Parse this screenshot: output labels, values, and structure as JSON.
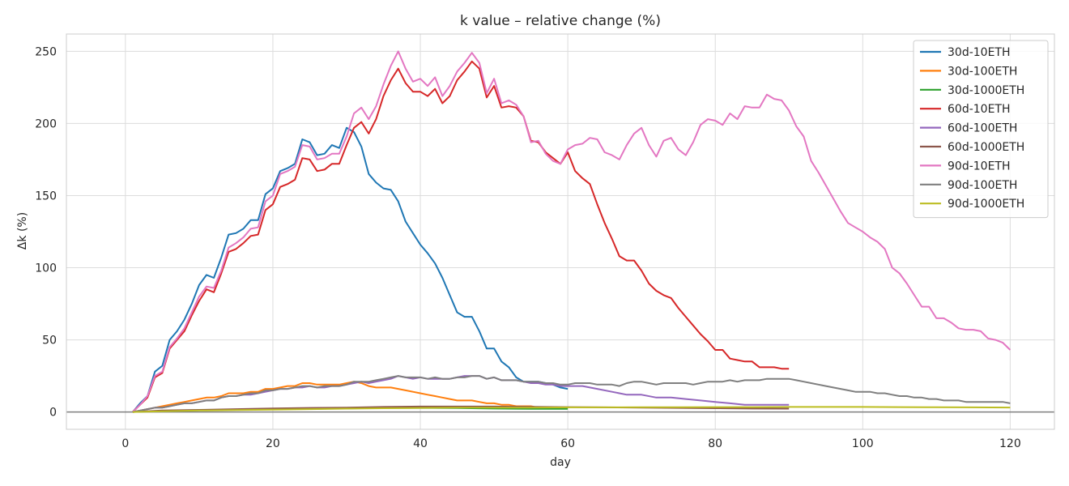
{
  "chart_data": {
    "type": "line",
    "title": "k value – relative change (%)",
    "xlabel": "day",
    "ylabel": "Δk (%)",
    "xlim": [
      -8,
      126
    ],
    "ylim": [
      -12,
      262
    ],
    "xticks": [
      0,
      20,
      40,
      60,
      80,
      100,
      120
    ],
    "yticks": [
      0,
      50,
      100,
      150,
      200,
      250
    ],
    "grid": true,
    "zero_line": true,
    "legend_position": "top-right",
    "series": [
      {
        "name": "30d-10ETH",
        "color": "#1f77b4",
        "x": [
          1,
          2,
          3,
          4,
          5,
          6,
          7,
          8,
          9,
          10,
          11,
          12,
          13,
          14,
          15,
          16,
          17,
          18,
          19,
          20,
          21,
          22,
          23,
          24,
          25,
          26,
          27,
          28,
          29,
          30,
          31,
          32,
          33,
          34,
          35,
          36,
          37,
          38,
          39,
          40,
          41,
          42,
          43,
          44,
          45,
          46,
          47,
          48,
          49,
          50,
          51,
          52,
          53,
          54,
          55,
          56,
          57,
          58,
          59,
          60
        ],
        "y": [
          0,
          6,
          11,
          28,
          32,
          50,
          56,
          64,
          75,
          88,
          95,
          93,
          107,
          123,
          124,
          127,
          133,
          133,
          151,
          155,
          167,
          169,
          172,
          189,
          187,
          178,
          179,
          185,
          183,
          197,
          194,
          184,
          165,
          159,
          155,
          154,
          146,
          132,
          124,
          116,
          110,
          103,
          93,
          81,
          69,
          66,
          66,
          56,
          44,
          44,
          35,
          31,
          24,
          21,
          21,
          21,
          20,
          19,
          17,
          16
        ]
      },
      {
        "name": "30d-100ETH",
        "color": "#ff7f0e",
        "x": [
          1,
          2,
          3,
          4,
          5,
          6,
          7,
          8,
          9,
          10,
          11,
          12,
          13,
          14,
          15,
          16,
          17,
          18,
          19,
          20,
          21,
          22,
          23,
          24,
          25,
          26,
          27,
          28,
          29,
          30,
          31,
          32,
          33,
          34,
          35,
          36,
          37,
          38,
          39,
          40,
          41,
          42,
          43,
          44,
          45,
          46,
          47,
          48,
          49,
          50,
          51,
          52,
          53,
          54,
          55,
          56,
          57,
          58,
          59,
          60
        ],
        "y": [
          0,
          1,
          2,
          3,
          4,
          5,
          6,
          7,
          8,
          9,
          10,
          10,
          11,
          13,
          13,
          13,
          14,
          14,
          16,
          16,
          17,
          18,
          18,
          20,
          20,
          19,
          19,
          19,
          19,
          20,
          21,
          20,
          18,
          17,
          17,
          17,
          16,
          15,
          14,
          13,
          12,
          11,
          10,
          9,
          8,
          8,
          8,
          7,
          6,
          6,
          5,
          5,
          4,
          4,
          4,
          3,
          3,
          3,
          3,
          3
        ]
      },
      {
        "name": "30d-1000ETH",
        "color": "#2ca02c",
        "x": [
          1,
          5,
          10,
          15,
          20,
          25,
          30,
          35,
          40,
          45,
          50,
          55,
          60
        ],
        "y": [
          0,
          0.8,
          1.2,
          1.6,
          2.0,
          2.2,
          2.5,
          2.8,
          2.8,
          2.7,
          2.4,
          2.2,
          2.2
        ]
      },
      {
        "name": "60d-10ETH",
        "color": "#d62728",
        "x": [
          1,
          2,
          3,
          4,
          5,
          6,
          7,
          8,
          9,
          10,
          11,
          12,
          13,
          14,
          15,
          16,
          17,
          18,
          19,
          20,
          21,
          22,
          23,
          24,
          25,
          26,
          27,
          28,
          29,
          30,
          31,
          32,
          33,
          34,
          35,
          36,
          37,
          38,
          39,
          40,
          41,
          42,
          43,
          44,
          45,
          46,
          47,
          48,
          49,
          50,
          51,
          52,
          53,
          54,
          55,
          56,
          57,
          58,
          59,
          60,
          61,
          62,
          63,
          64,
          65,
          66,
          67,
          68,
          69,
          70,
          71,
          72,
          73,
          74,
          75,
          76,
          77,
          78,
          79,
          80,
          81,
          82,
          83,
          84,
          85,
          86,
          87,
          88,
          89,
          90
        ],
        "y": [
          0,
          5,
          10,
          24,
          27,
          44,
          50,
          56,
          67,
          77,
          85,
          83,
          96,
          111,
          113,
          117,
          122,
          123,
          140,
          144,
          156,
          158,
          161,
          176,
          175,
          167,
          168,
          172,
          172,
          185,
          197,
          201,
          193,
          203,
          219,
          230,
          238,
          228,
          222,
          222,
          219,
          224,
          214,
          219,
          230,
          236,
          243,
          238,
          218,
          226,
          211,
          212,
          211,
          205,
          188,
          187,
          180,
          176,
          172,
          180,
          167,
          162,
          158,
          144,
          131,
          120,
          108,
          105,
          105,
          98,
          89,
          84,
          81,
          79,
          72,
          66,
          60,
          54,
          49,
          43,
          43,
          37,
          36,
          35,
          35,
          31,
          31,
          31,
          30,
          30
        ]
      },
      {
        "name": "60d-100ETH",
        "color": "#9467bd",
        "x": [
          1,
          2,
          3,
          4,
          5,
          6,
          7,
          8,
          9,
          10,
          11,
          12,
          13,
          14,
          15,
          16,
          17,
          18,
          19,
          20,
          21,
          22,
          23,
          24,
          25,
          26,
          27,
          28,
          29,
          30,
          31,
          32,
          33,
          34,
          35,
          36,
          37,
          38,
          39,
          40,
          41,
          42,
          43,
          44,
          45,
          46,
          47,
          48,
          49,
          50,
          51,
          52,
          53,
          54,
          55,
          56,
          57,
          58,
          59,
          60,
          62,
          64,
          66,
          68,
          70,
          72,
          74,
          76,
          78,
          80,
          82,
          84,
          86,
          88,
          90
        ],
        "y": [
          0,
          1,
          2,
          3,
          3,
          4,
          5,
          6,
          6,
          7,
          8,
          8,
          10,
          11,
          11,
          12,
          12,
          13,
          14,
          15,
          16,
          16,
          17,
          17,
          18,
          17,
          17,
          18,
          18,
          19,
          20,
          21,
          20,
          21,
          22,
          23,
          25,
          24,
          23,
          24,
          23,
          23,
          23,
          23,
          24,
          25,
          25,
          25,
          23,
          24,
          22,
          22,
          22,
          21,
          20,
          20,
          19,
          19,
          18,
          18,
          18,
          16,
          14,
          12,
          12,
          10,
          10,
          9,
          8,
          7,
          6,
          5,
          5,
          5,
          5
        ]
      },
      {
        "name": "60d-1000ETH",
        "color": "#8c564b",
        "x": [
          1,
          5,
          10,
          15,
          20,
          25,
          30,
          35,
          40,
          45,
          50,
          55,
          60,
          65,
          70,
          75,
          80,
          85,
          90
        ],
        "y": [
          0,
          1,
          1.5,
          2,
          2.5,
          2.8,
          3,
          3.5,
          3.8,
          3.8,
          3.8,
          3.6,
          3.4,
          3.2,
          3.0,
          2.8,
          2.6,
          2.4,
          2.3
        ]
      },
      {
        "name": "90d-10ETH",
        "color": "#e377c2",
        "x": [
          1,
          2,
          3,
          4,
          5,
          6,
          7,
          8,
          9,
          10,
          11,
          12,
          13,
          14,
          15,
          16,
          17,
          18,
          19,
          20,
          21,
          22,
          23,
          24,
          25,
          26,
          27,
          28,
          29,
          30,
          31,
          32,
          33,
          34,
          35,
          36,
          37,
          38,
          39,
          40,
          41,
          42,
          43,
          44,
          45,
          46,
          47,
          48,
          49,
          50,
          51,
          52,
          53,
          54,
          55,
          56,
          57,
          58,
          59,
          60,
          61,
          62,
          63,
          64,
          65,
          66,
          67,
          68,
          69,
          70,
          71,
          72,
          73,
          74,
          75,
          76,
          77,
          78,
          79,
          80,
          81,
          82,
          83,
          84,
          85,
          86,
          87,
          88,
          89,
          90,
          91,
          92,
          93,
          94,
          95,
          96,
          97,
          98,
          99,
          100,
          101,
          102,
          103,
          104,
          105,
          106,
          107,
          108,
          109,
          110,
          111,
          112,
          113,
          114,
          115,
          116,
          117,
          118,
          119,
          120
        ],
        "y": [
          0,
          5,
          11,
          25,
          28,
          45,
          51,
          58,
          69,
          80,
          87,
          86,
          98,
          114,
          117,
          121,
          127,
          128,
          146,
          150,
          165,
          167,
          170,
          185,
          184,
          175,
          176,
          179,
          179,
          191,
          207,
          211,
          203,
          212,
          227,
          240,
          250,
          238,
          229,
          231,
          226,
          232,
          219,
          226,
          236,
          242,
          249,
          242,
          221,
          231,
          214,
          216,
          213,
          205,
          187,
          188,
          179,
          174,
          172,
          182,
          185,
          186,
          190,
          189,
          180,
          178,
          175,
          185,
          193,
          197,
          185,
          177,
          188,
          190,
          182,
          178,
          187,
          199,
          203,
          202,
          199,
          207,
          203,
          212,
          211,
          211,
          220,
          217,
          216,
          209,
          198,
          191,
          174,
          166,
          157,
          148,
          139,
          131,
          128,
          125,
          121,
          118,
          113,
          100,
          96,
          89,
          81,
          73,
          73,
          65,
          65,
          62,
          58,
          57,
          57,
          56,
          51,
          50,
          48,
          43
        ]
      },
      {
        "name": "90d-100ETH",
        "color": "#7f7f7f",
        "x": [
          1,
          2,
          3,
          4,
          5,
          6,
          7,
          8,
          9,
          10,
          11,
          12,
          13,
          14,
          15,
          16,
          17,
          18,
          19,
          20,
          21,
          22,
          23,
          24,
          25,
          26,
          27,
          28,
          29,
          30,
          31,
          32,
          33,
          34,
          35,
          36,
          37,
          38,
          39,
          40,
          41,
          42,
          43,
          44,
          45,
          46,
          47,
          48,
          49,
          50,
          51,
          52,
          53,
          54,
          55,
          56,
          57,
          58,
          59,
          60,
          61,
          62,
          63,
          64,
          65,
          66,
          67,
          68,
          69,
          70,
          71,
          72,
          73,
          74,
          75,
          76,
          77,
          78,
          79,
          80,
          81,
          82,
          83,
          84,
          85,
          86,
          87,
          88,
          89,
          90,
          91,
          92,
          93,
          94,
          95,
          96,
          97,
          98,
          99,
          100,
          101,
          102,
          103,
          104,
          105,
          106,
          107,
          108,
          109,
          110,
          111,
          112,
          113,
          114,
          115,
          116,
          117,
          118,
          119,
          120
        ],
        "y": [
          0,
          1,
          2,
          3,
          3,
          4,
          5,
          6,
          6,
          7,
          8,
          8,
          10,
          11,
          11,
          12,
          13,
          13,
          15,
          15,
          16,
          16,
          17,
          18,
          18,
          17,
          18,
          18,
          18,
          19,
          21,
          21,
          21,
          22,
          23,
          24,
          25,
          24,
          24,
          24,
          23,
          24,
          23,
          23,
          24,
          24,
          25,
          25,
          23,
          24,
          22,
          22,
          22,
          21,
          21,
          21,
          20,
          20,
          19,
          19,
          20,
          20,
          20,
          19,
          19,
          19,
          18,
          20,
          21,
          21,
          20,
          19,
          20,
          20,
          20,
          20,
          19,
          20,
          21,
          21,
          21,
          22,
          21,
          22,
          22,
          22,
          23,
          23,
          23,
          23,
          22,
          21,
          20,
          19,
          18,
          17,
          16,
          15,
          14,
          14,
          14,
          13,
          13,
          12,
          11,
          11,
          10,
          10,
          9,
          9,
          8,
          8,
          8,
          7,
          7,
          7,
          7,
          7,
          7,
          6
        ]
      },
      {
        "name": "90d-1000ETH",
        "color": "#bcbd22",
        "x": [
          1,
          5,
          10,
          15,
          20,
          25,
          30,
          35,
          40,
          45,
          50,
          55,
          60,
          65,
          70,
          75,
          80,
          85,
          90,
          95,
          100,
          105,
          110,
          115,
          120
        ],
        "y": [
          0,
          0.5,
          1,
          1.3,
          1.6,
          2,
          2.3,
          2.6,
          2.8,
          3,
          3,
          3,
          3.2,
          3.2,
          3.3,
          3.3,
          3.4,
          3.4,
          3.5,
          3.5,
          3.5,
          3.4,
          3.3,
          3.2,
          3.1
        ]
      }
    ]
  }
}
